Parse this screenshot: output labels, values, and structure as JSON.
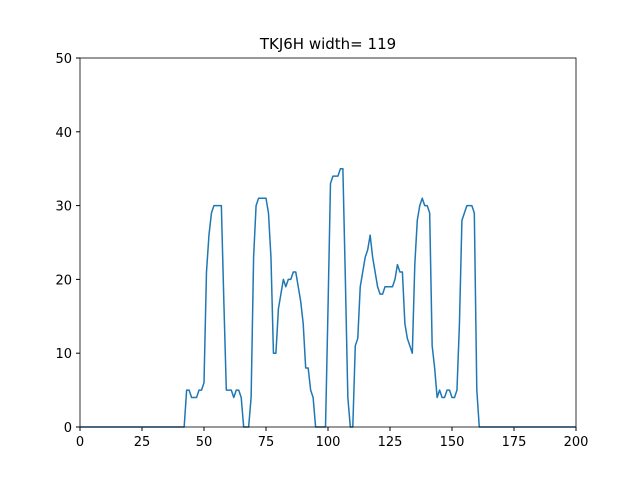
{
  "chart_data": {
    "type": "line",
    "title": "TKJ6H width= 119",
    "x": [
      0,
      42,
      43,
      44,
      45,
      46,
      47,
      48,
      49,
      50,
      51,
      52,
      53,
      54,
      55,
      56,
      57,
      58,
      59,
      60,
      61,
      62,
      63,
      64,
      65,
      66,
      67,
      68,
      69,
      70,
      71,
      72,
      73,
      74,
      75,
      76,
      77,
      78,
      79,
      80,
      81,
      82,
      83,
      84,
      85,
      86,
      87,
      88,
      89,
      90,
      91,
      92,
      93,
      94,
      95,
      96,
      97,
      98,
      99,
      100,
      101,
      102,
      103,
      104,
      105,
      106,
      107,
      108,
      109,
      110,
      111,
      112,
      113,
      114,
      115,
      116,
      117,
      118,
      119,
      120,
      121,
      122,
      123,
      124,
      125,
      126,
      127,
      128,
      129,
      130,
      131,
      132,
      133,
      134,
      135,
      136,
      137,
      138,
      139,
      140,
      141,
      142,
      143,
      144,
      145,
      146,
      147,
      148,
      149,
      150,
      151,
      152,
      153,
      154,
      155,
      156,
      157,
      158,
      159,
      160,
      161,
      200
    ],
    "series": [
      {
        "color": "#1f77b4",
        "values": [
          0,
          0,
          5,
          5,
          4,
          4,
          4,
          5,
          5,
          6,
          21,
          26,
          29,
          30,
          30,
          30,
          30,
          17,
          5,
          5,
          5,
          4,
          5,
          5,
          4,
          0,
          0,
          0,
          4,
          23,
          30,
          31,
          31,
          31,
          31,
          29,
          23,
          10,
          10,
          16,
          18,
          20,
          19,
          20,
          20,
          21,
          21,
          19,
          17,
          14,
          8,
          8,
          5,
          4,
          0,
          0,
          0,
          0,
          0,
          16,
          33,
          34,
          34,
          34,
          35,
          35,
          20,
          4,
          0,
          0,
          11,
          12,
          19,
          21,
          23,
          24,
          26,
          23,
          21,
          19,
          18,
          18,
          19,
          19,
          19,
          19,
          20,
          22,
          21,
          21,
          14,
          12,
          11,
          10,
          22,
          28,
          30,
          31,
          30,
          30,
          29,
          11,
          8,
          4,
          5,
          4,
          4,
          5,
          5,
          4,
          4,
          5,
          14,
          28,
          29,
          30,
          30,
          30,
          29,
          5,
          0,
          0
        ]
      }
    ],
    "xlim": [
      0,
      200
    ],
    "xticks": [
      0,
      25,
      50,
      75,
      100,
      125,
      150,
      175,
      200
    ],
    "ylim": [
      0,
      50
    ],
    "yticks": [
      0,
      10,
      20,
      30,
      40,
      50
    ]
  }
}
